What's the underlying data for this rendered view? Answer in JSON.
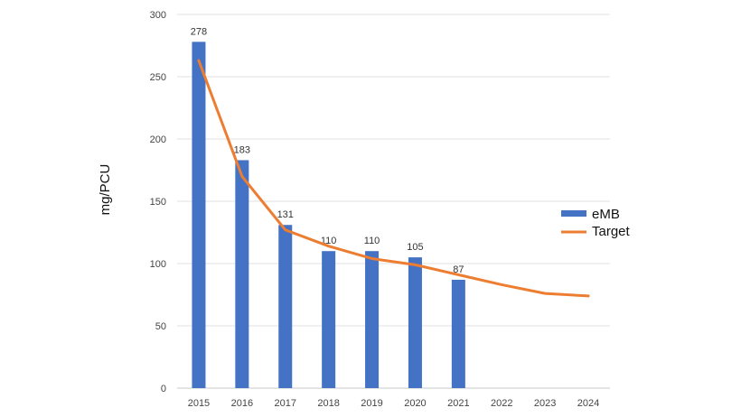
{
  "chart_data": {
    "type": "bar",
    "categories": [
      "2015",
      "2016",
      "2017",
      "2018",
      "2019",
      "2020",
      "2021",
      "2022",
      "2023",
      "2024"
    ],
    "series": [
      {
        "name": "eMB",
        "kind": "bar",
        "color": "#4472c4",
        "values": [
          278,
          183,
          131,
          110,
          110,
          105,
          87,
          null,
          null,
          null
        ],
        "data_labels": [
          "278",
          "183",
          "131",
          "110",
          "110",
          "105",
          "87"
        ]
      },
      {
        "name": "Target",
        "kind": "line",
        "color": "#ed7d31",
        "values": [
          263,
          170,
          127,
          114,
          104,
          99,
          91,
          83,
          76,
          74
        ]
      }
    ],
    "ylabel": "mg/PCU",
    "ylim": [
      0,
      300
    ],
    "yticks": [
      "0",
      "50",
      "100",
      "150",
      "200",
      "250",
      "300"
    ],
    "grid": true,
    "legend_position": "right"
  }
}
